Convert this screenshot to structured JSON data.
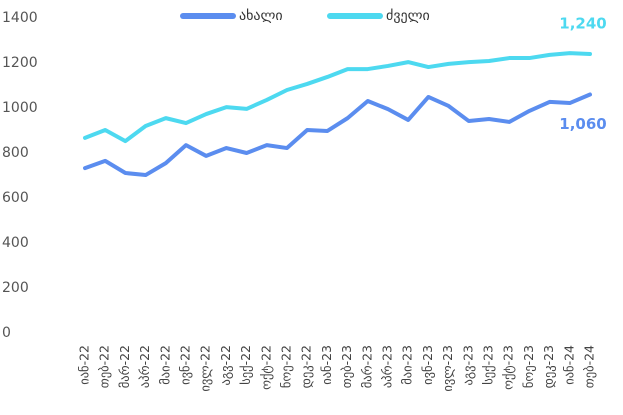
{
  "chart_data": {
    "type": "line",
    "categories": [
      "იან-22",
      "თებ-22",
      "მარ-22",
      "აპრ-22",
      "მაი-22",
      "ივნ-22",
      "ივლ-22",
      "აგვ-22",
      "სექ-22",
      "ოქტ-22",
      "ნოე-22",
      "დეკ-22",
      "იან-23",
      "თებ-23",
      "მარ-23",
      "აპრ-23",
      "მაი-23",
      "ივნ-23",
      "ივლ-23",
      "აგვ-23",
      "სექ-23",
      "ოქტ-23",
      "ნოე-23",
      "დეკ-23",
      "იან-24",
      "თებ-24"
    ],
    "series": [
      {
        "name": "ახალი",
        "color": "#5b8def",
        "values": [
          733,
          765,
          711,
          702,
          755,
          835,
          787,
          822,
          800,
          835,
          822,
          902,
          898,
          955,
          1031,
          995,
          947,
          1049,
          1009,
          942,
          951,
          938,
          987,
          1027,
          1022,
          1060
        ],
        "value_labels": [
          null,
          null,
          null,
          null,
          null,
          null,
          null,
          null,
          null,
          null,
          null,
          null,
          null,
          null,
          null,
          null,
          null,
          null,
          null,
          null,
          null,
          null,
          null,
          null,
          null,
          "1,060"
        ]
      },
      {
        "name": "ძველი",
        "color": "#4dd9f0",
        "values": [
          867,
          902,
          853,
          920,
          955,
          933,
          973,
          1004,
          996,
          1036,
          1080,
          1107,
          1138,
          1173,
          1173,
          1187,
          1204,
          1182,
          1196,
          1204,
          1209,
          1222,
          1222,
          1236,
          1244,
          1240
        ],
        "value_labels": [
          null,
          null,
          null,
          null,
          null,
          null,
          null,
          null,
          null,
          null,
          null,
          null,
          null,
          null,
          null,
          null,
          null,
          null,
          null,
          null,
          null,
          null,
          null,
          null,
          null,
          "1,240"
        ]
      }
    ],
    "ylim": [
      0,
      1400
    ],
    "yticks": [
      0,
      200,
      400,
      600,
      800,
      1000,
      1200,
      1400
    ],
    "grid": false,
    "legend": "top"
  }
}
